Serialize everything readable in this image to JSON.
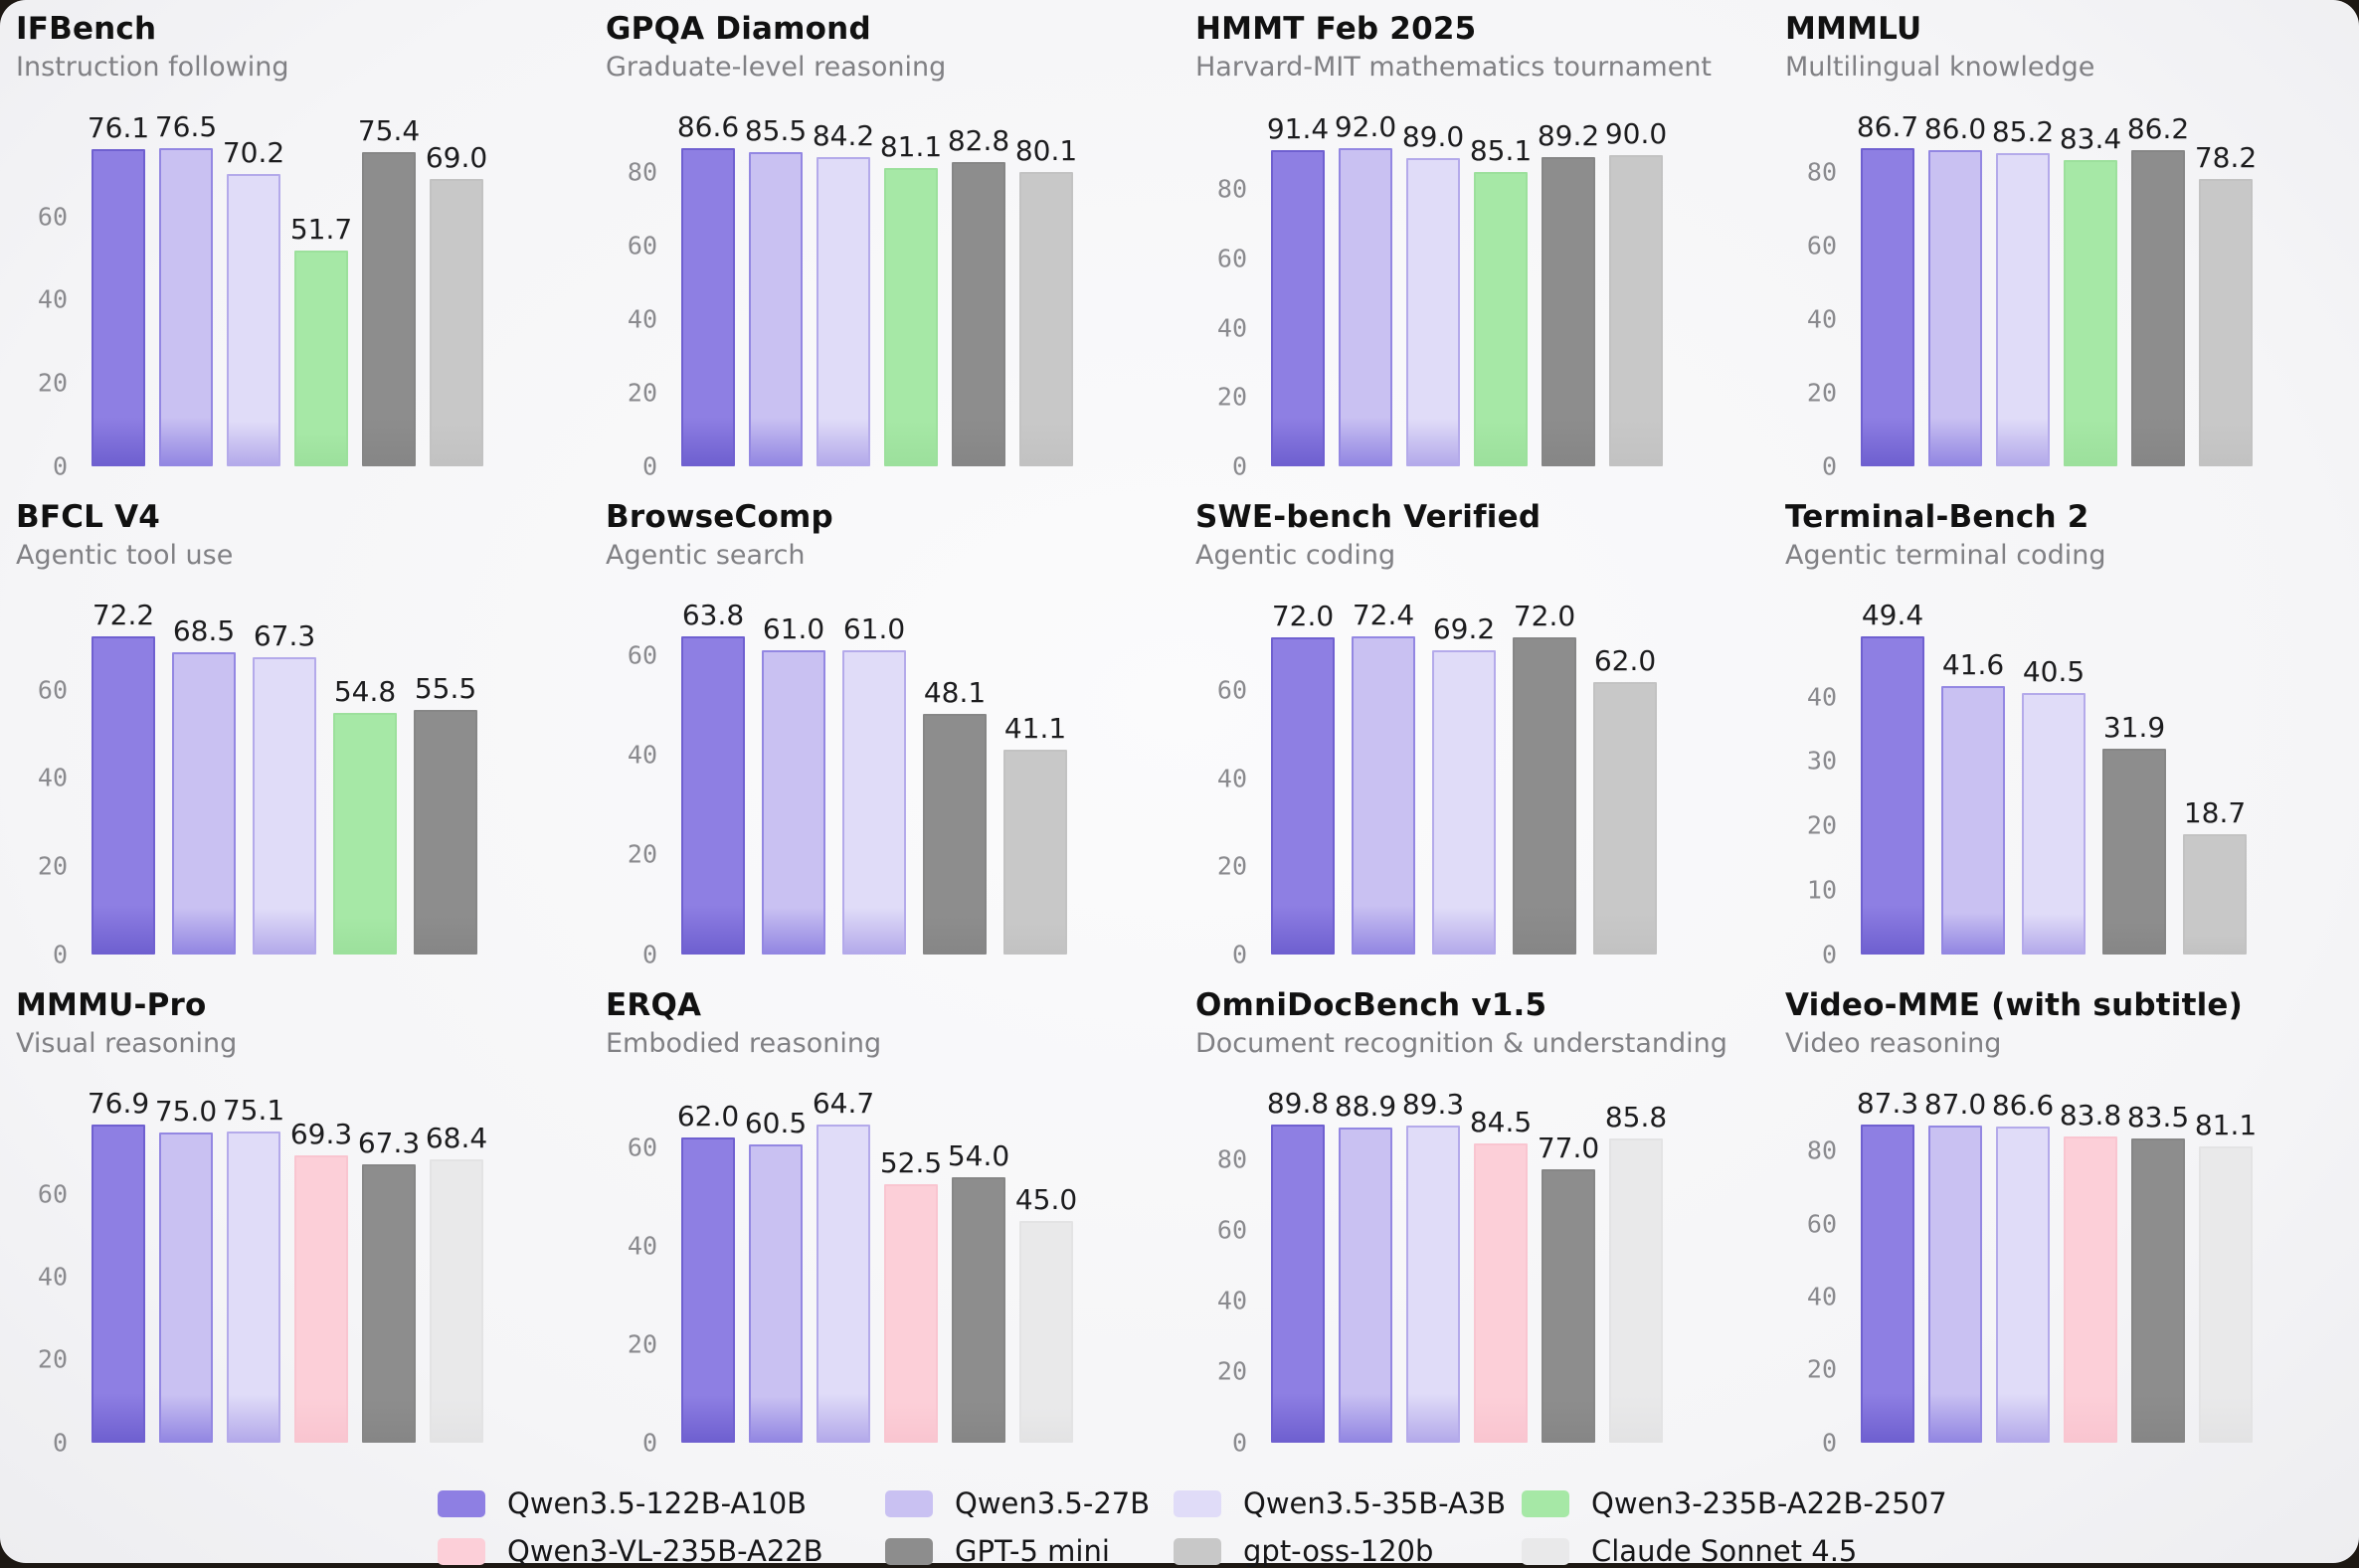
{
  "models": [
    {
      "id": "qwen35_122b",
      "label": "Qwen3.5-122B-A10B",
      "color": "#8e7fe3",
      "border": "#6f60d0"
    },
    {
      "id": "qwen35_27b",
      "label": "Qwen3.5-27B",
      "color": "#c9c1f2",
      "border": "#9387e2"
    },
    {
      "id": "qwen35_35b",
      "label": "Qwen3.5-35B-A3B",
      "color": "#e0dcf8",
      "border": "#b4aaea"
    },
    {
      "id": "qwen3_235b",
      "label": "Qwen3-235B-A22B-2507",
      "color": "#a6e8a6",
      "border": "#9ce09c"
    },
    {
      "id": "qwen3_vl",
      "label": "Qwen3-VL-235B-A22B",
      "color": "#fccfd8",
      "border": "#f9c5d0"
    },
    {
      "id": "gpt5_mini",
      "label": "GPT-5 mini",
      "color": "#8d8d8d",
      "border": "#868686"
    },
    {
      "id": "gpt_oss_120b",
      "label": "gpt-oss-120b",
      "color": "#c8c8c8",
      "border": "#c2c2c2"
    },
    {
      "id": "claude_45",
      "label": "Claude Sonnet 4.5",
      "color": "#e9e9ea",
      "border": "#e3e3e4"
    }
  ],
  "legend": {
    "rows": [
      [
        "qwen35_122b",
        "qwen35_27b",
        "qwen35_35b",
        "qwen3_235b"
      ],
      [
        "qwen3_vl",
        "gpt5_mini",
        "gpt_oss_120b",
        "claude_45"
      ]
    ]
  },
  "chart_data": [
    {
      "type": "bar",
      "title": "IFBench",
      "subtitle": "Instruction following",
      "ticks": [
        0,
        20,
        40,
        60
      ],
      "ylim": [
        0,
        87
      ],
      "bars": [
        {
          "model": "qwen35_122b",
          "value": 76.1,
          "label": "76.1"
        },
        {
          "model": "qwen35_27b",
          "value": 76.5,
          "label": "76.5"
        },
        {
          "model": "qwen35_35b",
          "value": 70.2,
          "label": "70.2"
        },
        {
          "model": "qwen3_235b",
          "value": 51.7,
          "label": "51.7"
        },
        {
          "model": "gpt5_mini",
          "value": 75.4,
          "label": "75.4"
        },
        {
          "model": "gpt_oss_120b",
          "value": 69.0,
          "label": "69.0"
        }
      ]
    },
    {
      "type": "bar",
      "title": "GPQA Diamond",
      "subtitle": "Graduate-level reasoning",
      "ticks": [
        0,
        20,
        40,
        60,
        80
      ],
      "ylim": [
        0,
        98
      ],
      "bars": [
        {
          "model": "qwen35_122b",
          "value": 86.6,
          "label": "86.6"
        },
        {
          "model": "qwen35_27b",
          "value": 85.5,
          "label": "85.5"
        },
        {
          "model": "qwen35_35b",
          "value": 84.2,
          "label": "84.2"
        },
        {
          "model": "qwen3_235b",
          "value": 81.1,
          "label": "81.1"
        },
        {
          "model": "gpt5_mini",
          "value": 82.8,
          "label": "82.8"
        },
        {
          "model": "gpt_oss_120b",
          "value": 80.1,
          "label": "80.1"
        }
      ]
    },
    {
      "type": "bar",
      "title": "HMMT Feb 2025",
      "subtitle": "Harvard-MIT mathematics tournament",
      "ticks": [
        0,
        20,
        40,
        60,
        80
      ],
      "ylim": [
        0,
        104
      ],
      "bars": [
        {
          "model": "qwen35_122b",
          "value": 91.4,
          "label": "91.4"
        },
        {
          "model": "qwen35_27b",
          "value": 92.0,
          "label": "92.0"
        },
        {
          "model": "qwen35_35b",
          "value": 89.0,
          "label": "89.0"
        },
        {
          "model": "qwen3_235b",
          "value": 85.1,
          "label": "85.1"
        },
        {
          "model": "gpt5_mini",
          "value": 89.2,
          "label": "89.2"
        },
        {
          "model": "gpt_oss_120b",
          "value": 90.0,
          "label": "90.0"
        }
      ]
    },
    {
      "type": "bar",
      "title": "MMMLU",
      "subtitle": "Multilingual knowledge",
      "ticks": [
        0,
        20,
        40,
        60,
        80
      ],
      "ylim": [
        0,
        98
      ],
      "bars": [
        {
          "model": "qwen35_122b",
          "value": 86.7,
          "label": "86.7"
        },
        {
          "model": "qwen35_27b",
          "value": 86.0,
          "label": "86.0"
        },
        {
          "model": "qwen35_35b",
          "value": 85.2,
          "label": "85.2"
        },
        {
          "model": "qwen3_235b",
          "value": 83.4,
          "label": "83.4"
        },
        {
          "model": "gpt5_mini",
          "value": 86.2,
          "label": "86.2"
        },
        {
          "model": "gpt_oss_120b",
          "value": 78.2,
          "label": "78.2"
        }
      ]
    },
    {
      "type": "bar",
      "title": "BFCL V4",
      "subtitle": "Agentic tool use",
      "ticks": [
        0,
        20,
        40,
        60
      ],
      "ylim": [
        0,
        82
      ],
      "bars": [
        {
          "model": "qwen35_122b",
          "value": 72.2,
          "label": "72.2"
        },
        {
          "model": "qwen35_27b",
          "value": 68.5,
          "label": "68.5"
        },
        {
          "model": "qwen35_35b",
          "value": 67.3,
          "label": "67.3"
        },
        {
          "model": "qwen3_235b",
          "value": 54.8,
          "label": "54.8"
        },
        {
          "model": "gpt5_mini",
          "value": 55.5,
          "label": "55.5"
        }
      ]
    },
    {
      "type": "bar",
      "title": "BrowseComp",
      "subtitle": "Agentic search",
      "ticks": [
        0,
        20,
        40,
        60
      ],
      "ylim": [
        0,
        73
      ],
      "bars": [
        {
          "model": "qwen35_122b",
          "value": 63.8,
          "label": "63.8"
        },
        {
          "model": "qwen35_27b",
          "value": 61.0,
          "label": "61.0"
        },
        {
          "model": "qwen35_35b",
          "value": 61.0,
          "label": "61.0"
        },
        {
          "model": "gpt5_mini",
          "value": 48.1,
          "label": "48.1"
        },
        {
          "model": "gpt_oss_120b",
          "value": 41.1,
          "label": "41.1"
        }
      ]
    },
    {
      "type": "bar",
      "title": "SWE-bench Verified",
      "subtitle": "Agentic coding",
      "ticks": [
        0,
        20,
        40,
        60
      ],
      "ylim": [
        0,
        82
      ],
      "bars": [
        {
          "model": "qwen35_122b",
          "value": 72.0,
          "label": "72.0"
        },
        {
          "model": "qwen35_27b",
          "value": 72.4,
          "label": "72.4"
        },
        {
          "model": "qwen35_35b",
          "value": 69.2,
          "label": "69.2"
        },
        {
          "model": "gpt5_mini",
          "value": 72.0,
          "label": "72.0"
        },
        {
          "model": "gpt_oss_120b",
          "value": 62.0,
          "label": "62.0"
        }
      ]
    },
    {
      "type": "bar",
      "title": "Terminal-Bench 2",
      "subtitle": "Agentic terminal coding",
      "ticks": [
        0,
        10,
        20,
        30,
        40
      ],
      "ylim": [
        0,
        56
      ],
      "bars": [
        {
          "model": "qwen35_122b",
          "value": 49.4,
          "label": "49.4"
        },
        {
          "model": "qwen35_27b",
          "value": 41.6,
          "label": "41.6"
        },
        {
          "model": "qwen35_35b",
          "value": 40.5,
          "label": "40.5"
        },
        {
          "model": "gpt5_mini",
          "value": 31.9,
          "label": "31.9"
        },
        {
          "model": "gpt_oss_120b",
          "value": 18.7,
          "label": "18.7"
        }
      ]
    },
    {
      "type": "bar",
      "title": "MMMU-Pro",
      "subtitle": "Visual reasoning",
      "ticks": [
        0,
        20,
        40,
        60
      ],
      "ylim": [
        0,
        87
      ],
      "bars": [
        {
          "model": "qwen35_122b",
          "value": 76.9,
          "label": "76.9"
        },
        {
          "model": "qwen35_27b",
          "value": 75.0,
          "label": "75.0"
        },
        {
          "model": "qwen35_35b",
          "value": 75.1,
          "label": "75.1"
        },
        {
          "model": "qwen3_vl",
          "value": 69.3,
          "label": "69.3"
        },
        {
          "model": "gpt5_mini",
          "value": 67.3,
          "label": "67.3"
        },
        {
          "model": "claude_45",
          "value": 68.4,
          "label": "68.4"
        }
      ]
    },
    {
      "type": "bar",
      "title": "ERQA",
      "subtitle": "Embodied reasoning",
      "ticks": [
        0,
        20,
        40,
        60
      ],
      "ylim": [
        0,
        73
      ],
      "bars": [
        {
          "model": "qwen35_122b",
          "value": 62.0,
          "label": "62.0"
        },
        {
          "model": "qwen35_27b",
          "value": 60.5,
          "label": "60.5"
        },
        {
          "model": "qwen35_35b",
          "value": 64.7,
          "label": "64.7"
        },
        {
          "model": "qwen3_vl",
          "value": 52.5,
          "label": "52.5"
        },
        {
          "model": "gpt5_mini",
          "value": 54.0,
          "label": "54.0"
        },
        {
          "model": "claude_45",
          "value": 45.0,
          "label": "45.0"
        }
      ]
    },
    {
      "type": "bar",
      "title": "OmniDocBench v1.5",
      "subtitle": "Document recognition & understanding",
      "ticks": [
        0,
        20,
        40,
        60,
        80
      ],
      "ylim": [
        0,
        102
      ],
      "bars": [
        {
          "model": "qwen35_122b",
          "value": 89.8,
          "label": "89.8"
        },
        {
          "model": "qwen35_27b",
          "value": 88.9,
          "label": "88.9"
        },
        {
          "model": "qwen35_35b",
          "value": 89.3,
          "label": "89.3"
        },
        {
          "model": "qwen3_vl",
          "value": 84.5,
          "label": "84.5"
        },
        {
          "model": "gpt5_mini",
          "value": 77.0,
          "label": "77.0"
        },
        {
          "model": "claude_45",
          "value": 85.8,
          "label": "85.8"
        }
      ]
    },
    {
      "type": "bar",
      "title": "Video-MME (with subtitle)",
      "subtitle": "Video reasoning",
      "ticks": [
        0,
        20,
        40,
        60,
        80
      ],
      "ylim": [
        0,
        99
      ],
      "bars": [
        {
          "model": "qwen35_122b",
          "value": 87.3,
          "label": "87.3"
        },
        {
          "model": "qwen35_27b",
          "value": 87.0,
          "label": "87.0"
        },
        {
          "model": "qwen35_35b",
          "value": 86.6,
          "label": "86.6"
        },
        {
          "model": "qwen3_vl",
          "value": 83.8,
          "label": "83.8"
        },
        {
          "model": "gpt5_mini",
          "value": 83.5,
          "label": "83.5"
        },
        {
          "model": "claude_45",
          "value": 81.1,
          "label": "81.1"
        }
      ]
    }
  ]
}
